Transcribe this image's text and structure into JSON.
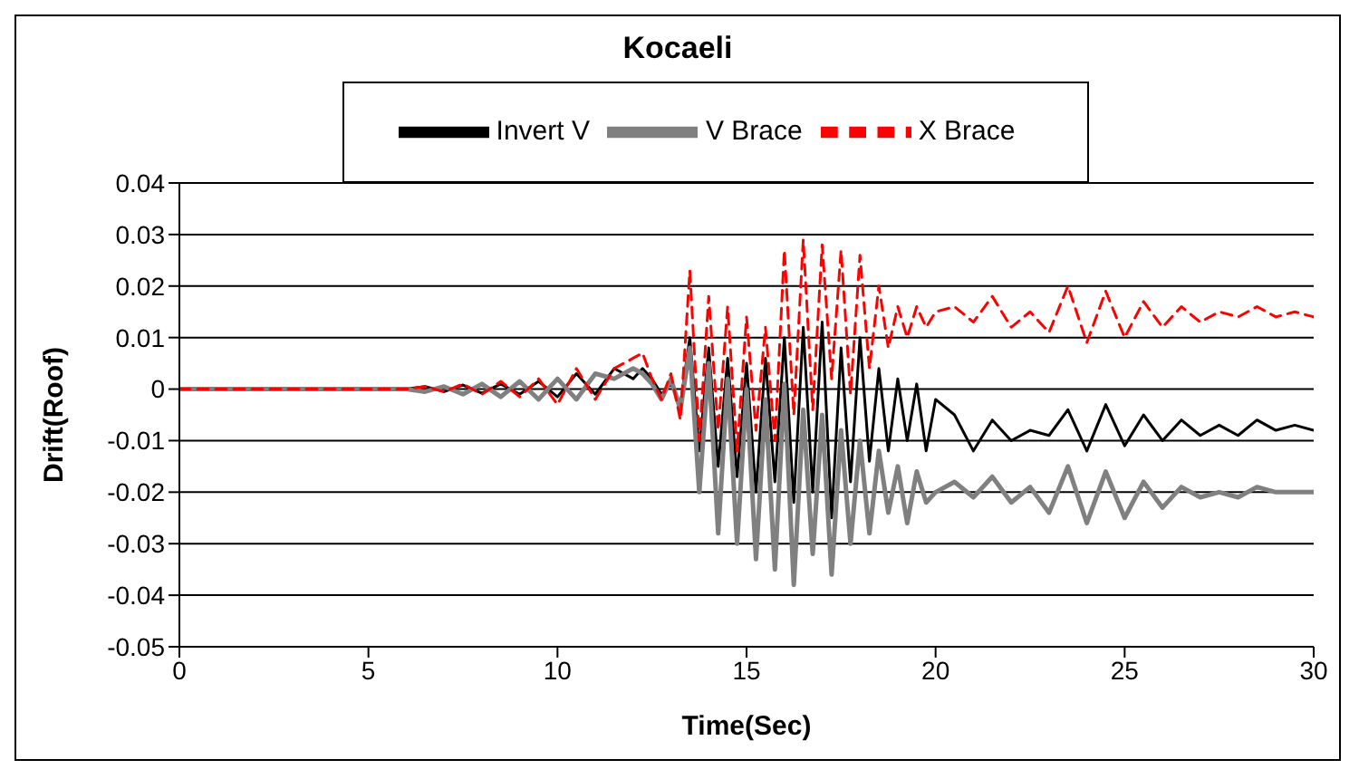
{
  "chart_data": {
    "type": "line",
    "title": "Kocaeli",
    "xlabel": "Time(Sec)",
    "ylabel": "Drift(Roof)",
    "x": [
      0,
      1,
      2,
      3,
      4,
      5,
      6,
      6.5,
      7,
      7.5,
      8,
      8.5,
      9,
      9.5,
      10,
      10.5,
      11,
      11.5,
      12,
      12.25,
      12.5,
      12.75,
      13,
      13.25,
      13.5,
      13.75,
      14,
      14.25,
      14.5,
      14.75,
      15,
      15.25,
      15.5,
      15.75,
      16,
      16.25,
      16.5,
      16.75,
      17,
      17.25,
      17.5,
      17.75,
      18,
      18.25,
      18.5,
      18.75,
      19,
      19.25,
      19.5,
      19.75,
      20,
      20.5,
      21,
      21.5,
      22,
      22.5,
      23,
      23.5,
      24,
      24.5,
      25,
      25.5,
      26,
      26.5,
      27,
      27.5,
      28,
      28.5,
      29,
      29.5,
      30
    ],
    "series": [
      {
        "name": "Invert V",
        "color": "#000000",
        "values": [
          0,
          0,
          0,
          0,
          0,
          0,
          0,
          0.0005,
          -0.0005,
          0.0008,
          -0.0008,
          0.001,
          -0.001,
          0.0015,
          -0.0015,
          0.003,
          -0.001,
          0.004,
          0.002,
          0.004,
          0.002,
          -0.001,
          0.001,
          -0.003,
          0.01,
          -0.012,
          0.008,
          -0.015,
          0.006,
          -0.017,
          0.005,
          -0.02,
          0.006,
          -0.018,
          0.01,
          -0.022,
          0.012,
          -0.02,
          0.013,
          -0.025,
          0.008,
          -0.018,
          0.01,
          -0.014,
          0.004,
          -0.012,
          0.002,
          -0.01,
          0.001,
          -0.012,
          -0.002,
          -0.005,
          -0.012,
          -0.006,
          -0.01,
          -0.008,
          -0.009,
          -0.004,
          -0.012,
          -0.003,
          -0.011,
          -0.005,
          -0.01,
          -0.006,
          -0.009,
          -0.007,
          -0.009,
          -0.006,
          -0.008,
          -0.007,
          -0.008
        ]
      },
      {
        "name": "V Brace",
        "color": "#808080",
        "values": [
          0,
          0,
          0,
          0,
          0,
          0,
          0,
          -0.0005,
          0.0005,
          -0.001,
          0.001,
          -0.0015,
          0.0015,
          -0.002,
          0.002,
          -0.002,
          0.003,
          0.002,
          0.004,
          0.003,
          0.001,
          -0.002,
          0.002,
          -0.004,
          0.008,
          -0.02,
          0.005,
          -0.028,
          0.002,
          -0.03,
          0,
          -0.033,
          -0.002,
          -0.035,
          0.001,
          -0.038,
          -0.004,
          -0.032,
          -0.005,
          -0.036,
          -0.008,
          -0.03,
          -0.01,
          -0.028,
          -0.012,
          -0.024,
          -0.015,
          -0.026,
          -0.016,
          -0.022,
          -0.02,
          -0.018,
          -0.021,
          -0.017,
          -0.022,
          -0.019,
          -0.024,
          -0.015,
          -0.026,
          -0.016,
          -0.025,
          -0.018,
          -0.023,
          -0.019,
          -0.021,
          -0.02,
          -0.021,
          -0.019,
          -0.02,
          -0.02,
          -0.02
        ]
      },
      {
        "name": "X Brace",
        "color": "#ff0000",
        "line_style": "dashed",
        "values": [
          0,
          0,
          0,
          0,
          0,
          0,
          0,
          0.0005,
          -0.0005,
          0.001,
          -0.001,
          0.0015,
          -0.0015,
          0.002,
          -0.003,
          0.004,
          -0.002,
          0.004,
          0.006,
          0.007,
          0.002,
          -0.002,
          0.003,
          -0.006,
          0.023,
          -0.01,
          0.018,
          -0.008,
          0.016,
          -0.012,
          0.014,
          -0.008,
          0.012,
          -0.01,
          0.027,
          -0.005,
          0.029,
          -0.004,
          0.028,
          0.002,
          0.027,
          -0.001,
          0.026,
          0.004,
          0.02,
          0.008,
          0.016,
          0.01,
          0.016,
          0.012,
          0.015,
          0.016,
          0.013,
          0.018,
          0.012,
          0.015,
          0.011,
          0.02,
          0.009,
          0.019,
          0.01,
          0.017,
          0.012,
          0.016,
          0.013,
          0.015,
          0.014,
          0.016,
          0.014,
          0.015,
          0.014
        ]
      }
    ],
    "xlim": [
      0,
      30
    ],
    "xticks": [
      0,
      5,
      10,
      15,
      20,
      25,
      30
    ],
    "ylim": [
      -0.05,
      0.04
    ],
    "yticks": [
      -0.05,
      -0.04,
      -0.03,
      -0.02,
      -0.01,
      0,
      0.01,
      0.02,
      0.03,
      0.04
    ],
    "grid": "y",
    "legend": "top",
    "marker": "none"
  }
}
